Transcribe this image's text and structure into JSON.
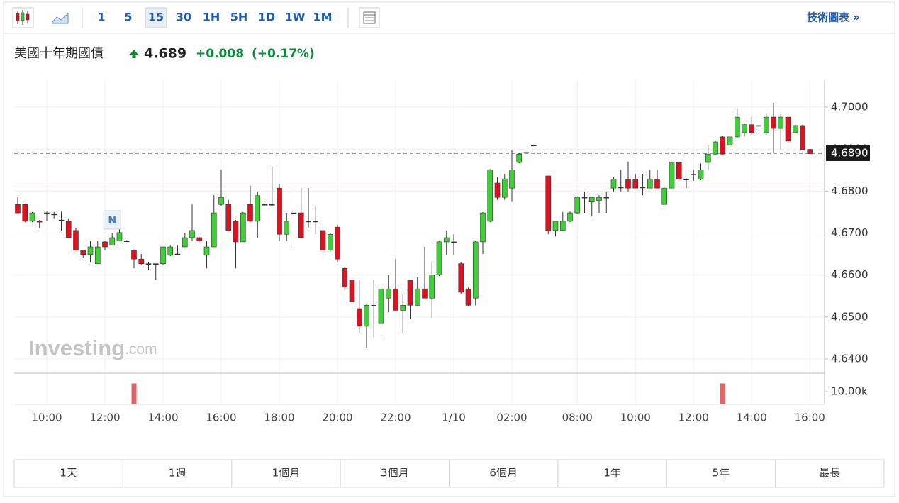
{
  "toolbar": {
    "intervals": [
      "1",
      "5",
      "15",
      "30",
      "1H",
      "5H",
      "1D",
      "1W",
      "1M"
    ],
    "selected": "15",
    "tech_chart_link": "技術圖表 »"
  },
  "quote": {
    "name": "美國十年期國債",
    "price": "4.689",
    "change": "+0.008",
    "change_percent": "(+0.17%)"
  },
  "chart_data": {
    "type": "candlestick",
    "categories": [
      null,
      null,
      null,
      null,
      "10:00",
      null,
      null,
      null,
      null,
      null,
      null,
      null,
      "12:00",
      null,
      null,
      null,
      null,
      null,
      null,
      null,
      "14:00",
      null,
      null,
      null,
      null,
      null,
      null,
      null,
      "16:00",
      null,
      null,
      null,
      null,
      null,
      null,
      null,
      "18:00",
      null,
      null,
      null,
      null,
      null,
      null,
      null,
      "20:00",
      null,
      null,
      null,
      null,
      null,
      null,
      null,
      "22:00",
      null,
      null,
      null,
      null,
      null,
      null,
      null,
      "1/10",
      null,
      null,
      null,
      null,
      null,
      null,
      null,
      "02:00",
      null,
      null,
      null,
      null,
      null,
      null,
      null,
      null,
      "08:00",
      null,
      null,
      null,
      null,
      null,
      null,
      null,
      "10:00",
      null,
      null,
      null,
      null,
      null,
      null,
      null,
      "12:00",
      null,
      null,
      null,
      null,
      null,
      null,
      null,
      "14:00",
      null,
      null,
      null,
      null,
      null,
      null,
      null,
      "16:00"
    ],
    "open": [
      4.6768,
      4.6768,
      4.6728,
      4.6728,
      4.6748,
      4.6745,
      4.6731,
      4.6728,
      4.6706,
      4.6659,
      4.6649,
      4.6627,
      4.6679,
      4.6671,
      4.6681,
      4.6681,
      4.6659,
      4.6638,
      4.6627,
      4.6627,
      4.6627,
      4.6647,
      4.665,
      4.6667,
      4.6689,
      4.6689,
      4.6647,
      4.6667,
      4.6768,
      4.6768,
      4.6728,
      4.6679,
      4.6768,
      4.6728,
      4.6768,
      4.6768,
      4.6807,
      4.6697,
      4.6748,
      4.6748,
      4.6728,
      4.6728,
      4.6706,
      4.6659,
      4.6714,
      4.6616,
      4.6588,
      4.652,
      4.6478,
      4.6528,
      4.6486,
      4.6545,
      4.6567,
      4.6516,
      4.6588,
      4.6528,
      4.6567,
      4.6545,
      4.66,
      4.6679,
      4.6679,
      4.6627,
      4.6567,
      4.6545,
      4.6679,
      4.6728,
      4.6819,
      4.6785,
      4.6807,
      4.6868,
      4.6892,
      4.6909,
      null,
      4.6836,
      4.6706,
      4.6706,
      4.6728,
      4.6748,
      4.6785,
      4.6774,
      4.6777,
      4.6785,
      4.6807,
      4.6809,
      4.6828,
      4.6828,
      4.6809,
      4.6807,
      4.6828,
      4.6768,
      4.6807,
      4.6868,
      4.6828,
      4.684,
      4.6828,
      4.6868,
      4.6888,
      4.6929,
      4.6909,
      4.6929,
      4.6939,
      4.6958,
      4.6956,
      4.6939,
      4.6976,
      4.6949,
      4.6976,
      4.6939,
      4.6956,
      4.6899
    ],
    "high": [
      4.6785,
      4.677,
      4.675,
      4.6731,
      4.6751,
      4.675,
      4.6751,
      4.6735,
      4.6713,
      4.666,
      4.6681,
      4.6681,
      4.6682,
      4.67,
      4.672,
      4.6683,
      4.6661,
      4.665,
      4.663,
      4.6627,
      4.6667,
      4.667,
      4.667,
      4.6701,
      4.6768,
      4.669,
      4.6681,
      4.679,
      4.685,
      4.6779,
      4.6731,
      4.675,
      4.6812,
      4.6799,
      4.677,
      4.6858,
      4.6816,
      4.6748,
      4.6799,
      4.6807,
      4.6807,
      4.6765,
      4.6728,
      4.67,
      4.672,
      4.662,
      4.659,
      4.6588,
      4.653,
      4.6588,
      4.6571,
      4.66,
      4.6638,
      4.6554,
      4.6588,
      4.6596,
      4.6667,
      4.663,
      4.6681,
      4.6706,
      4.6697,
      4.663,
      4.657,
      4.6681,
      4.675,
      4.6852,
      4.6833,
      4.6841,
      4.6897,
      4.689,
      4.6892,
      4.6909,
      null,
      4.6836,
      4.6728,
      4.675,
      4.6751,
      4.6787,
      4.6799,
      4.6785,
      4.679,
      4.6799,
      4.6833,
      4.685,
      4.687,
      4.6841,
      4.6841,
      4.685,
      4.685,
      4.6807,
      4.687,
      4.687,
      4.683,
      4.685,
      4.6866,
      4.6909,
      4.6919,
      4.6931,
      4.6931,
      4.6997,
      4.696,
      4.6976,
      4.6976,
      4.6985,
      4.701,
      4.6985,
      4.6978,
      4.6958,
      4.6958,
      4.69
    ],
    "low": [
      4.6748,
      4.6726,
      4.6726,
      4.6711,
      4.6728,
      4.6735,
      4.6706,
      4.6689,
      4.6659,
      4.664,
      4.663,
      4.6627,
      4.666,
      4.6671,
      4.6681,
      4.6679,
      4.6616,
      4.6625,
      4.6613,
      4.6588,
      4.6625,
      4.6645,
      4.665,
      4.6667,
      4.6681,
      4.668,
      4.6616,
      4.6667,
      4.6765,
      4.6706,
      4.6616,
      4.6679,
      4.6726,
      4.6689,
      4.6766,
      4.6765,
      4.6681,
      4.6681,
      4.6667,
      4.6689,
      4.6711,
      4.6697,
      4.6659,
      4.6655,
      4.663,
      4.6565,
      4.6537,
      4.6461,
      4.6427,
      4.6452,
      4.6452,
      4.6511,
      4.6516,
      4.6461,
      4.6495,
      4.6525,
      4.6545,
      4.6498,
      4.6598,
      4.6647,
      4.6647,
      4.6555,
      4.6525,
      4.6528,
      4.665,
      4.6726,
      4.6779,
      4.6779,
      4.6774,
      4.6866,
      4.6892,
      4.6909,
      null,
      4.6697,
      4.6692,
      4.6706,
      4.6726,
      4.6746,
      4.6748,
      4.674,
      4.6748,
      4.6748,
      4.6799,
      4.6799,
      4.6799,
      4.6807,
      4.679,
      4.6807,
      4.6807,
      4.6768,
      4.6807,
      4.6828,
      4.6807,
      4.6824,
      4.6826,
      4.685,
      4.6886,
      4.6886,
      4.6907,
      4.6927,
      4.693,
      4.6934,
      4.6939,
      4.6934,
      4.689,
      4.6899,
      4.6917,
      4.6937,
      4.6897,
      4.6888
    ],
    "close": [
      4.6748,
      4.6728,
      4.6748,
      4.6726,
      4.6748,
      4.6745,
      4.6731,
      4.6689,
      4.6659,
      4.6649,
      4.6667,
      4.6667,
      4.6667,
      4.6689,
      4.6701,
      4.6681,
      4.6638,
      4.6627,
      4.6627,
      4.6627,
      4.6667,
      4.6667,
      4.665,
      4.6689,
      4.6706,
      4.6681,
      4.6667,
      4.6748,
      4.6785,
      4.6706,
      4.6679,
      4.6748,
      4.6728,
      4.6789,
      4.6768,
      4.6768,
      4.6697,
      4.6728,
      4.6748,
      4.6689,
      4.6728,
      4.6728,
      4.6659,
      4.6697,
      4.6638,
      4.6571,
      4.6537,
      4.6478,
      4.6528,
      4.6528,
      4.6567,
      4.6567,
      4.6516,
      4.6528,
      4.6528,
      4.6567,
      4.6545,
      4.66,
      4.6679,
      4.6689,
      4.6679,
      4.6559,
      4.6528,
      4.6679,
      4.6748,
      4.685,
      4.6785,
      4.6829,
      4.685,
      4.6888,
      4.6892,
      4.6909,
      null,
      4.6706,
      4.6728,
      4.6728,
      4.6748,
      4.6785,
      4.6785,
      4.6785,
      4.6785,
      4.6785,
      4.6828,
      4.6809,
      4.6807,
      4.6807,
      4.6809,
      4.6828,
      4.6807,
      4.6807,
      4.6868,
      4.6828,
      4.6828,
      4.684,
      4.685,
      4.6888,
      4.6917,
      4.6888,
      4.6929,
      4.6976,
      4.6958,
      4.6939,
      4.6956,
      4.6976,
      4.6949,
      4.6976,
      4.6919,
      4.6956,
      4.6899,
      4.6889
    ],
    "up_color": "#3fcf36",
    "down_color": "#e0101e",
    "ylim": [
      4.6368,
      4.7064
    ],
    "yticks": [
      {
        "value": 4.64,
        "label": "4.6400"
      },
      {
        "value": 4.65,
        "label": "4.6500"
      },
      {
        "value": 4.66,
        "label": "4.6600"
      },
      {
        "value": 4.67,
        "label": "4.6700"
      },
      {
        "value": 4.68,
        "label": "4.6800"
      },
      {
        "value": 4.69,
        "label": "4.6900"
      },
      {
        "value": 4.7,
        "label": "4.7000"
      }
    ],
    "grid": true,
    "last_price": {
      "value": 4.689,
      "label": "4.6890"
    },
    "previous_close": 4.681,
    "annotations": [
      {
        "at": 13,
        "text": "N"
      }
    ],
    "volume": {
      "color": "#e06666",
      "ylim": [
        0,
        24000
      ],
      "yticks": [
        {
          "value": 10000,
          "label": "10.00k"
        }
      ],
      "values": [
        null,
        null,
        null,
        null,
        null,
        null,
        null,
        null,
        null,
        null,
        null,
        null,
        null,
        null,
        null,
        null,
        16500,
        null,
        null,
        null,
        null,
        null,
        null,
        null,
        null,
        null,
        null,
        null,
        null,
        null,
        null,
        null,
        null,
        null,
        null,
        null,
        null,
        null,
        null,
        null,
        null,
        null,
        null,
        null,
        null,
        null,
        null,
        null,
        null,
        null,
        null,
        null,
        null,
        null,
        null,
        null,
        null,
        null,
        null,
        null,
        null,
        null,
        null,
        null,
        null,
        null,
        null,
        null,
        null,
        null,
        null,
        null,
        null,
        null,
        null,
        null,
        null,
        null,
        null,
        null,
        null,
        null,
        null,
        null,
        null,
        null,
        null,
        null,
        null,
        null,
        null,
        null,
        null,
        null,
        null,
        null,
        null,
        16500,
        null,
        null,
        null,
        null,
        null,
        null,
        null,
        null,
        null,
        null,
        null,
        null
      ]
    }
  },
  "watermark": {
    "brand": "Investing",
    "suffix": ".com"
  },
  "ranges": [
    "1天",
    "1週",
    "1個月",
    "3個月",
    "6個月",
    "1年",
    "5年",
    "最長"
  ]
}
